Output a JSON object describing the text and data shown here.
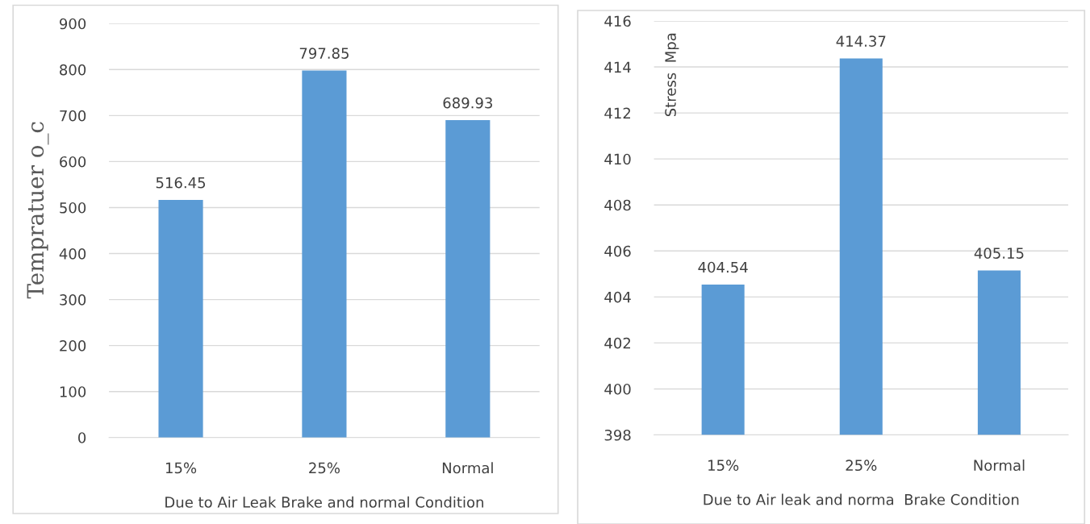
{
  "chart_data": [
    {
      "type": "bar",
      "categories": [
        "15%",
        "25%",
        "Normal"
      ],
      "values": [
        516.45,
        797.85,
        689.93
      ],
      "color": "#5b9bd5",
      "xlabel": "Due to Air Leak Brake and normal Condition",
      "ylabel": "Tempratuer o_c",
      "ylim": [
        0,
        900
      ],
      "yticks": [
        0,
        100,
        200,
        300,
        400,
        500,
        600,
        700,
        800,
        900
      ],
      "grid": "y",
      "data_labels": true
    },
    {
      "type": "bar",
      "categories": [
        "15%",
        "25%",
        "Normal"
      ],
      "values": [
        404.54,
        414.37,
        405.15
      ],
      "color": "#5b9bd5",
      "xlabel": "Due to Air leak and norma  Brake Condition",
      "ylabel": "Stress  Mpa",
      "ylim": [
        398,
        416
      ],
      "yticks": [
        398,
        400,
        402,
        404,
        406,
        408,
        410,
        412,
        414,
        416
      ],
      "grid": "y",
      "data_labels": true
    }
  ]
}
